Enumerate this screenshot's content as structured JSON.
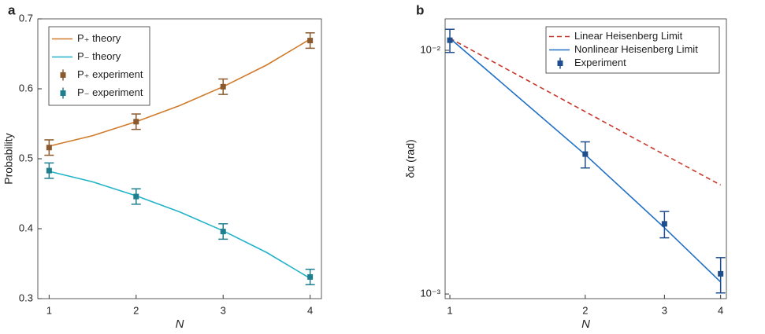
{
  "chart_data": [
    {
      "type": "line",
      "panel": "a",
      "xlabel": "N",
      "ylabel": "Probability",
      "xlim": [
        0.87,
        4.13
      ],
      "ylim": [
        0.3,
        0.7
      ],
      "xticks": [
        1,
        2,
        3,
        4
      ],
      "yticks": [
        0.3,
        0.4,
        0.5,
        0.6,
        0.7
      ],
      "legend": "upper left",
      "series": [
        {
          "name": "P₊ theory",
          "color": "#d07a2a",
          "x": [
            1,
            1.5,
            2,
            2.5,
            3,
            3.5,
            4
          ],
          "values": [
            0.518,
            0.533,
            0.553,
            0.576,
            0.603,
            0.634,
            0.671
          ]
        },
        {
          "name": "P₋ theory",
          "color": "#22b3c8",
          "x": [
            1,
            1.5,
            2,
            2.5,
            3,
            3.5,
            4
          ],
          "values": [
            0.482,
            0.467,
            0.447,
            0.424,
            0.397,
            0.366,
            0.329
          ]
        },
        {
          "name": "P₊ experiment",
          "color": "#8a5a2e",
          "marker": "square",
          "x": [
            1,
            2,
            3,
            4
          ],
          "values": [
            0.516,
            0.553,
            0.603,
            0.669
          ],
          "errors": [
            0.011,
            0.011,
            0.011,
            0.011
          ]
        },
        {
          "name": "P₋ experiment",
          "color": "#1f7f8e",
          "marker": "square",
          "x": [
            1,
            2,
            3,
            4
          ],
          "values": [
            0.483,
            0.446,
            0.396,
            0.331
          ],
          "errors": [
            0.011,
            0.011,
            0.011,
            0.011
          ]
        }
      ]
    },
    {
      "type": "line",
      "panel": "b",
      "xlabel": "N",
      "ylabel": "δα (rad)",
      "xscale": "log",
      "yscale": "log",
      "xlim": [
        0.976,
        4.12
      ],
      "ylim": [
        0.000957,
        0.01346
      ],
      "xticks": [
        1,
        2,
        3,
        4
      ],
      "yticks": [
        {
          "value": 0.001,
          "label": "10⁻³"
        },
        {
          "value": 0.01,
          "label": "10⁻²"
        }
      ],
      "legend": "upper right",
      "series": [
        {
          "name": "Linear Heisenberg Limit",
          "color": "#c8392b",
          "dash": true,
          "x": [
            1,
            2,
            3,
            4
          ],
          "values": [
            0.0112,
            0.0056,
            0.00373,
            0.0028
          ]
        },
        {
          "name": "Nonlinear Heisenberg Limit",
          "color": "#1f6fc5",
          "x": [
            1,
            2,
            3,
            4
          ],
          "values": [
            0.0112,
            0.00373,
            0.00187,
            0.00112
          ]
        },
        {
          "name": "Experiment",
          "color": "#1f4e8c",
          "marker": "square",
          "x": [
            1,
            2,
            3,
            4
          ],
          "values": [
            0.011,
            0.00375,
            0.00194,
            0.00121
          ],
          "errors": [
            0.0012,
            0.00046,
            0.00024,
            0.0002
          ]
        }
      ]
    }
  ]
}
